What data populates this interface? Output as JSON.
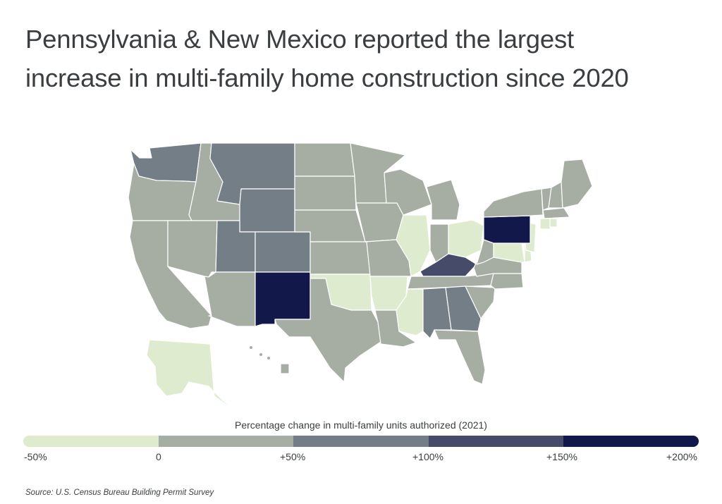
{
  "title": {
    "line1": "Pennsylvania & New Mexico reported the largest",
    "line2": "increase in multi-family home construction since 2020"
  },
  "legend": {
    "title": "Percentage change in multi-family units authorized (2021)",
    "bins": [
      {
        "color": "#dfebce"
      },
      {
        "color": "#a6aea4"
      },
      {
        "color": "#737e86"
      },
      {
        "color": "#454b68"
      },
      {
        "color": "#13184a"
      }
    ],
    "ticks": [
      "-50%",
      "0",
      "+50%",
      "+100%",
      "+150%",
      "+200%"
    ]
  },
  "source": "Source:  U.S. Census Bureau Building Permit Survey",
  "map_data": {
    "type": "choropleth",
    "states": [
      {
        "state": "WA",
        "bin": 2
      },
      {
        "state": "OR",
        "bin": 1
      },
      {
        "state": "CA",
        "bin": 1
      },
      {
        "state": "ID",
        "bin": 1
      },
      {
        "state": "NV",
        "bin": 1
      },
      {
        "state": "MT",
        "bin": 2
      },
      {
        "state": "WY",
        "bin": 2
      },
      {
        "state": "UT",
        "bin": 2
      },
      {
        "state": "CO",
        "bin": 2
      },
      {
        "state": "AZ",
        "bin": 1
      },
      {
        "state": "NM",
        "bin": 4
      },
      {
        "state": "ND",
        "bin": 1
      },
      {
        "state": "SD",
        "bin": 1
      },
      {
        "state": "NE",
        "bin": 1
      },
      {
        "state": "KS",
        "bin": 1
      },
      {
        "state": "OK",
        "bin": 0
      },
      {
        "state": "TX",
        "bin": 1
      },
      {
        "state": "MN",
        "bin": 1
      },
      {
        "state": "IA",
        "bin": 1
      },
      {
        "state": "MO",
        "bin": 1
      },
      {
        "state": "AR",
        "bin": 0
      },
      {
        "state": "LA",
        "bin": 1
      },
      {
        "state": "WI",
        "bin": 1
      },
      {
        "state": "IL",
        "bin": 0
      },
      {
        "state": "MI",
        "bin": 1
      },
      {
        "state": "IN",
        "bin": 1
      },
      {
        "state": "OH",
        "bin": 0
      },
      {
        "state": "KY",
        "bin": 3
      },
      {
        "state": "TN",
        "bin": 1
      },
      {
        "state": "MS",
        "bin": 0
      },
      {
        "state": "AL",
        "bin": 2
      },
      {
        "state": "GA",
        "bin": 2
      },
      {
        "state": "FL",
        "bin": 1
      },
      {
        "state": "SC",
        "bin": 1
      },
      {
        "state": "NC",
        "bin": 1
      },
      {
        "state": "VA",
        "bin": 1
      },
      {
        "state": "WV",
        "bin": 1
      },
      {
        "state": "MD",
        "bin": 0
      },
      {
        "state": "DE",
        "bin": 0
      },
      {
        "state": "NJ",
        "bin": 0
      },
      {
        "state": "PA",
        "bin": 4
      },
      {
        "state": "NY",
        "bin": 1
      },
      {
        "state": "VT",
        "bin": 1
      },
      {
        "state": "NH",
        "bin": 1
      },
      {
        "state": "ME",
        "bin": 1
      },
      {
        "state": "MA",
        "bin": 1
      },
      {
        "state": "CT",
        "bin": 0
      },
      {
        "state": "RI",
        "bin": 0
      },
      {
        "state": "AK",
        "bin": 0
      },
      {
        "state": "HI",
        "bin": 1
      }
    ]
  }
}
